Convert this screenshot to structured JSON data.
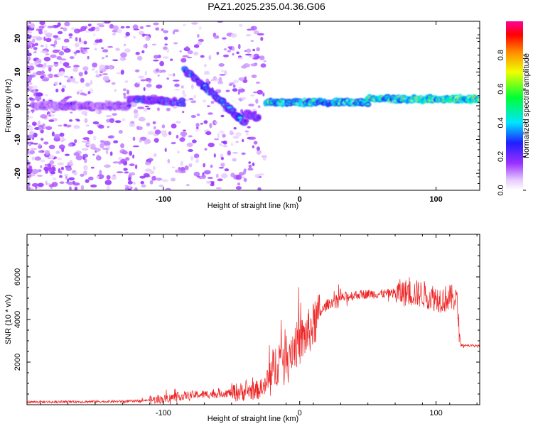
{
  "title": "PAZ1.2025.235.04.36.G06",
  "colors": {
    "snr_line": "#ee2222",
    "axis": "#000000",
    "background": "#ffffff"
  },
  "chart_data": [
    {
      "type": "heatmap",
      "xlabel": "Height of straight line (km)",
      "ylabel": "Frequency (Hz)",
      "xlim": [
        -200,
        132
      ],
      "ylim": [
        -25,
        25
      ],
      "x_ticks": [
        -100,
        0,
        100
      ],
      "y_ticks": [
        -20,
        -10,
        0,
        10,
        20
      ],
      "colorbar": {
        "label": "Normalized spectral amplitude",
        "range": [
          0.0,
          1.0
        ],
        "ticks": [
          "0.0",
          "0.2",
          "0.4",
          "0.6",
          "0.8"
        ],
        "colormap": "rainbow (white-violet-blue-cyan-green-yellow-red-magenta)"
      },
      "features": [
        {
          "x": [
            -195,
            -125
          ],
          "freq": [
            0,
            0
          ],
          "amplitude": 0.2
        },
        {
          "x": [
            -125,
            -85
          ],
          "freq": [
            2,
            1
          ],
          "amplitude": 0.3
        },
        {
          "x": [
            -85,
            -40
          ],
          "freq": [
            11,
            -5
          ],
          "amplitude": 0.35
        },
        {
          "x": [
            -40,
            -30
          ],
          "freq": [
            -2,
            -4
          ],
          "amplitude": 0.3
        },
        {
          "x": [
            -25,
            50
          ],
          "freq": [
            1,
            1
          ],
          "amplitude": 0.55
        },
        {
          "x": [
            50,
            132
          ],
          "freq": [
            2,
            2
          ],
          "amplitude": 0.65
        }
      ]
    },
    {
      "type": "line",
      "xlabel": "Height of straight line (km)",
      "ylabel": "SNR (10 * v/v)",
      "xlim": [
        -200,
        132
      ],
      "ylim": [
        0,
        8000
      ],
      "x_ticks": [
        -100,
        0,
        100
      ],
      "y_ticks": [
        2000,
        4000,
        6000
      ],
      "x": [
        -200,
        -180,
        -160,
        -140,
        -120,
        -100,
        -90,
        -80,
        -70,
        -60,
        -50,
        -40,
        -30,
        -25,
        -20,
        -15,
        -10,
        -5,
        0,
        5,
        10,
        15,
        20,
        30,
        40,
        50,
        60,
        70,
        80,
        90,
        95,
        100,
        105,
        110,
        115,
        118,
        120,
        125,
        132
      ],
      "y": [
        130,
        130,
        140,
        150,
        170,
        260,
        380,
        450,
        480,
        520,
        560,
        620,
        700,
        850,
        1500,
        2200,
        2500,
        2700,
        2900,
        3300,
        3700,
        4300,
        4700,
        5000,
        5150,
        5200,
        5200,
        5250,
        5250,
        5200,
        5100,
        5000,
        4950,
        5000,
        5000,
        2800,
        2800,
        2780,
        2750
      ]
    }
  ]
}
